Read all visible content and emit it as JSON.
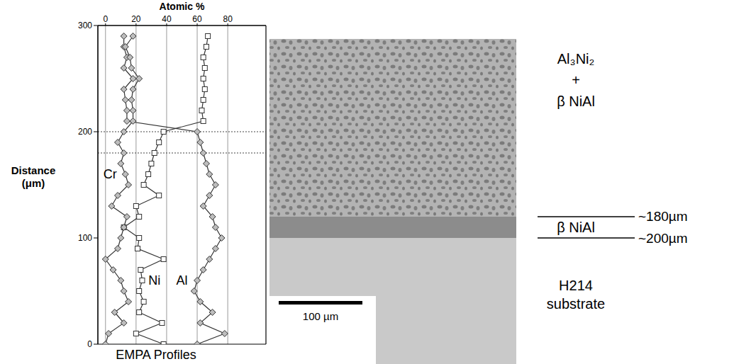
{
  "chart_data": {
    "type": "line",
    "title": "EMPA Profiles",
    "x_label": "Atomic %",
    "y_label": "Distance (μm)",
    "y": [
      0,
      10,
      20,
      30,
      40,
      50,
      60,
      70,
      80,
      90,
      100,
      110,
      120,
      130,
      140,
      150,
      160,
      170,
      180,
      190,
      200,
      210,
      220,
      230,
      240,
      250,
      260,
      270,
      280,
      290
    ],
    "series": [
      {
        "name": "Ni",
        "color": "#333333",
        "marker": "square",
        "values": [
          38,
          20,
          37,
          22,
          25,
          22,
          24,
          23,
          38,
          21,
          22,
          12,
          22,
          20,
          35,
          25,
          28,
          30,
          32,
          35,
          38,
          64,
          63,
          64,
          65,
          64,
          65,
          64,
          66,
          67
        ]
      },
      {
        "name": "Al",
        "color": "#333333",
        "marker": "diamond",
        "values": [
          60,
          78,
          62,
          70,
          62,
          58,
          60,
          64,
          68,
          72,
          76,
          72,
          70,
          64,
          68,
          72,
          68,
          66,
          64,
          62,
          60,
          14,
          14,
          13,
          12,
          18,
          12,
          14,
          12,
          12
        ]
      },
      {
        "name": "Cr",
        "color": "#333333",
        "marker": "diamond",
        "values": [
          0,
          2,
          12,
          6,
          15,
          12,
          10,
          5,
          0,
          8,
          10,
          12,
          14,
          4,
          8,
          15,
          13,
          10,
          12,
          8,
          12,
          18,
          18,
          17,
          18,
          22,
          17,
          16,
          13,
          18
        ]
      }
    ],
    "xlim": [
      -5,
      105
    ],
    "xticks": [
      0,
      20,
      40,
      60,
      80
    ],
    "ylim": [
      0,
      300
    ],
    "yticks": [
      0,
      100,
      200,
      300
    ],
    "reference_lines": [
      180,
      200
    ],
    "grid": true,
    "line_style": "dotted"
  },
  "micrograph": {
    "scale_bar": "100 µm",
    "layers": [
      {
        "lines": [
          "Al₃Ni₂",
          "+",
          "β NiAl"
        ]
      },
      {
        "lines": [
          "β NiAl"
        ],
        "top": "~180µm",
        "bottom": "~200µm"
      },
      {
        "lines": [
          "H214",
          "substrate"
        ]
      }
    ]
  }
}
